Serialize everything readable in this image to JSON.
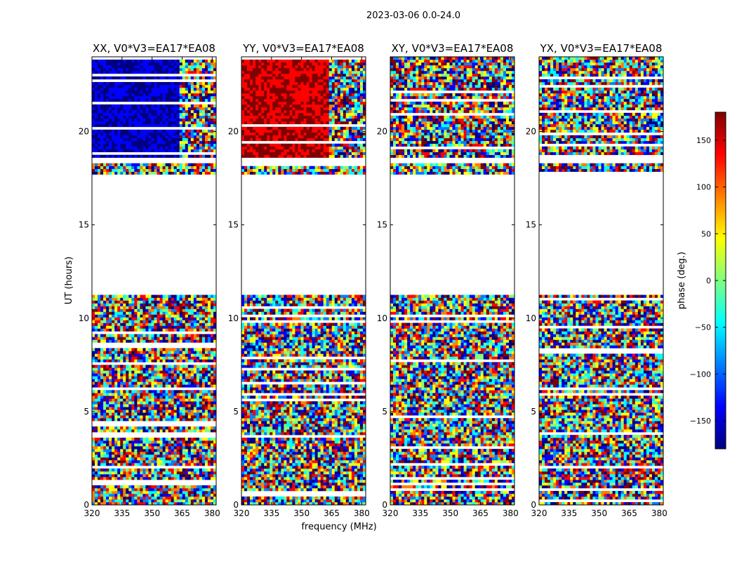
{
  "suptitle": "2023-03-06 0.0-24.0",
  "xlabel": "frequency (MHz)",
  "ylabel": "UT (hours)",
  "colorbar": {
    "label": "phase (deg.)",
    "min": -180,
    "max": 180,
    "ticks": [
      -150,
      -100,
      -50,
      0,
      50,
      100,
      150
    ],
    "tick_labels": [
      "−150",
      "−100",
      "−50",
      "0",
      "50",
      "100",
      "150"
    ],
    "colormap": [
      "#00007f",
      "#0000ff",
      "#007fff",
      "#00ffff",
      "#7fff7f",
      "#ffff00",
      "#ff7f00",
      "#ff0000",
      "#7f0000"
    ]
  },
  "chart_data": {
    "type": "heatmap",
    "title": "2023-03-06 0.0-24.0",
    "xlabel": "frequency (MHz)",
    "ylabel": "UT (hours)",
    "xlim": [
      320,
      382
    ],
    "ylim": [
      0,
      24
    ],
    "xticks": [
      320,
      335,
      350,
      365,
      380
    ],
    "yticks": [
      0,
      5,
      10,
      15,
      20
    ],
    "value": "phase (deg.)",
    "value_range": [
      -180,
      180
    ],
    "flagged_ut_ranges": [
      [
        11.3,
        17.7
      ],
      [
        18.3,
        18.6
      ]
    ],
    "panels": [
      {
        "title": "XX, V0*V3=EA17*EA08",
        "coherent_phase_deg": -140,
        "coherent_ut": [
          18.6,
          24
        ],
        "coherent_freq_max": 363
      },
      {
        "title": "YY, V0*V3=EA17*EA08",
        "coherent_phase_deg": 140,
        "coherent_ut": [
          18.6,
          24
        ],
        "coherent_freq_max": 363
      },
      {
        "title": "XY, V0*V3=EA17*EA08",
        "coherent_phase_deg": null,
        "coherent_ut": [],
        "coherent_freq_max": null
      },
      {
        "title": "YX, V0*V3=EA17*EA08",
        "coherent_phase_deg": null,
        "coherent_ut": [],
        "coherent_freq_max": null
      }
    ]
  }
}
